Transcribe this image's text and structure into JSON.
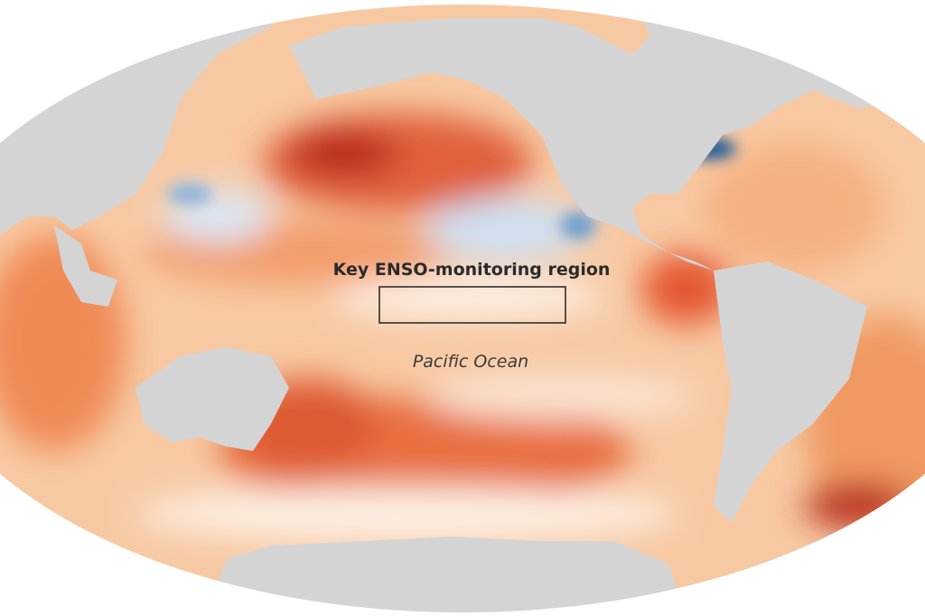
{
  "map": {
    "labels": {
      "region": "Key ENSO-monitoring region",
      "ocean": "Pacific Ocean"
    }
  }
}
